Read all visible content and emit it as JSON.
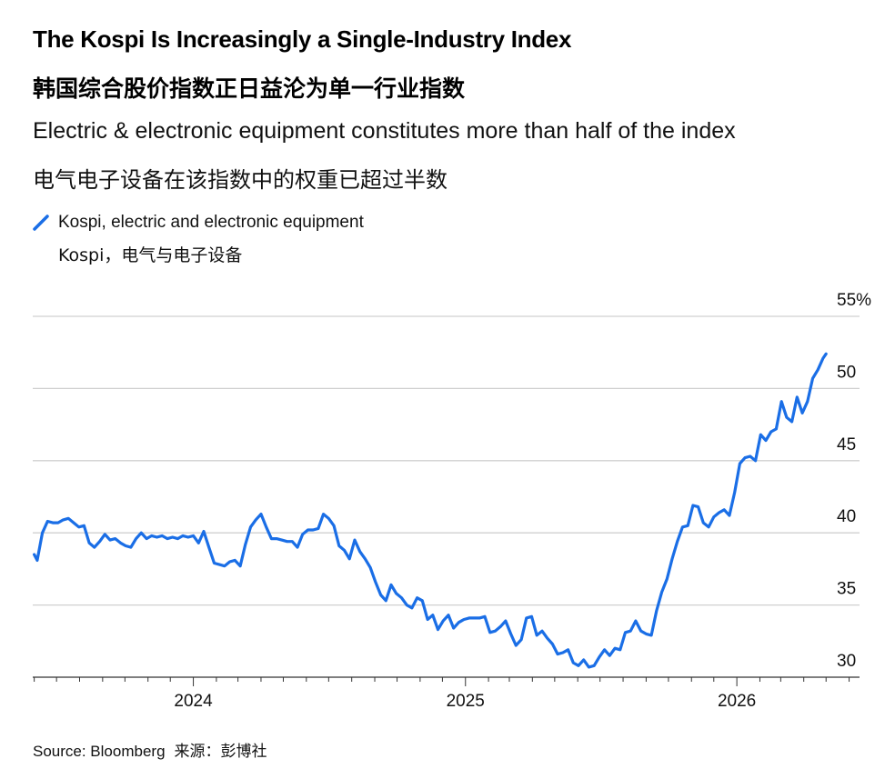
{
  "title": "The Kospi Is Increasingly a Single-Industry Index",
  "title_zh": "韩国综合股价指数正日益沦为单一行业指数",
  "subtitle": "Electric & electronic equipment constitutes more than half of the index",
  "subtitle_zh": "电气电子设备在该指数中的权重已超过半数",
  "legend": {
    "label": "Kospi, electric and electronic equipment",
    "label_zh": "Kospi，电气与电子设备"
  },
  "source": {
    "label": "Source: Bloomberg",
    "label_zh": "来源：彭博社"
  },
  "colors": {
    "line": "#1a6ee6",
    "grid": "#d0d0d0",
    "axis": "#333333"
  },
  "chart_data": {
    "type": "line",
    "series": [
      {
        "name": "Kospi, electric and electronic equipment",
        "points": [
          [
            "2023-06-01",
            38.5
          ],
          [
            "2023-06-05",
            38.1
          ],
          [
            "2023-06-12",
            40.0
          ],
          [
            "2023-06-19",
            40.8
          ],
          [
            "2023-06-26",
            40.7
          ],
          [
            "2023-07-03",
            40.7
          ],
          [
            "2023-07-10",
            40.9
          ],
          [
            "2023-07-17",
            41.0
          ],
          [
            "2023-07-24",
            40.7
          ],
          [
            "2023-07-31",
            40.4
          ],
          [
            "2023-08-07",
            40.5
          ],
          [
            "2023-08-14",
            39.3
          ],
          [
            "2023-08-21",
            39.0
          ],
          [
            "2023-08-28",
            39.4
          ],
          [
            "2023-09-04",
            39.9
          ],
          [
            "2023-09-11",
            39.5
          ],
          [
            "2023-09-18",
            39.6
          ],
          [
            "2023-09-25",
            39.3
          ],
          [
            "2023-10-02",
            39.1
          ],
          [
            "2023-10-09",
            39.0
          ],
          [
            "2023-10-16",
            39.6
          ],
          [
            "2023-10-23",
            40.0
          ],
          [
            "2023-10-30",
            39.6
          ],
          [
            "2023-11-06",
            39.8
          ],
          [
            "2023-11-13",
            39.7
          ],
          [
            "2023-11-20",
            39.8
          ],
          [
            "2023-11-27",
            39.6
          ],
          [
            "2023-12-04",
            39.7
          ],
          [
            "2023-12-11",
            39.6
          ],
          [
            "2023-12-18",
            39.8
          ],
          [
            "2023-12-25",
            39.7
          ],
          [
            "2024-01-01",
            39.8
          ],
          [
            "2024-01-08",
            39.3
          ],
          [
            "2024-01-15",
            40.1
          ],
          [
            "2024-01-22",
            39.0
          ],
          [
            "2024-01-29",
            37.9
          ],
          [
            "2024-02-05",
            37.8
          ],
          [
            "2024-02-12",
            37.7
          ],
          [
            "2024-02-19",
            38.0
          ],
          [
            "2024-02-26",
            38.1
          ],
          [
            "2024-03-04",
            37.7
          ],
          [
            "2024-03-11",
            39.2
          ],
          [
            "2024-03-18",
            40.4
          ],
          [
            "2024-03-25",
            40.9
          ],
          [
            "2024-04-01",
            41.3
          ],
          [
            "2024-04-08",
            40.4
          ],
          [
            "2024-04-15",
            39.6
          ],
          [
            "2024-04-22",
            39.6
          ],
          [
            "2024-04-29",
            39.5
          ],
          [
            "2024-05-06",
            39.4
          ],
          [
            "2024-05-13",
            39.4
          ],
          [
            "2024-05-20",
            39.0
          ],
          [
            "2024-05-27",
            39.9
          ],
          [
            "2024-06-03",
            40.2
          ],
          [
            "2024-06-10",
            40.2
          ],
          [
            "2024-06-17",
            40.3
          ],
          [
            "2024-06-24",
            41.3
          ],
          [
            "2024-07-01",
            41.0
          ],
          [
            "2024-07-08",
            40.5
          ],
          [
            "2024-07-15",
            39.1
          ],
          [
            "2024-07-22",
            38.8
          ],
          [
            "2024-07-29",
            38.2
          ],
          [
            "2024-08-05",
            39.5
          ],
          [
            "2024-08-12",
            38.7
          ],
          [
            "2024-08-19",
            38.2
          ],
          [
            "2024-08-26",
            37.6
          ],
          [
            "2024-09-02",
            36.6
          ],
          [
            "2024-09-09",
            35.7
          ],
          [
            "2024-09-16",
            35.3
          ],
          [
            "2024-09-23",
            36.4
          ],
          [
            "2024-09-30",
            35.8
          ],
          [
            "2024-10-07",
            35.5
          ],
          [
            "2024-10-14",
            35.0
          ],
          [
            "2024-10-21",
            34.8
          ],
          [
            "2024-10-28",
            35.5
          ],
          [
            "2024-11-04",
            35.3
          ],
          [
            "2024-11-11",
            34.0
          ],
          [
            "2024-11-18",
            34.3
          ],
          [
            "2024-11-25",
            33.3
          ],
          [
            "2024-12-02",
            33.9
          ],
          [
            "2024-12-09",
            34.3
          ],
          [
            "2024-12-16",
            33.4
          ],
          [
            "2024-12-23",
            33.8
          ],
          [
            "2024-12-30",
            34.0
          ],
          [
            "2025-01-06",
            34.1
          ],
          [
            "2025-01-13",
            34.1
          ],
          [
            "2025-01-20",
            34.1
          ],
          [
            "2025-01-27",
            34.2
          ],
          [
            "2025-02-03",
            33.1
          ],
          [
            "2025-02-10",
            33.2
          ],
          [
            "2025-02-17",
            33.5
          ],
          [
            "2025-02-24",
            33.9
          ],
          [
            "2025-03-03",
            33.0
          ],
          [
            "2025-03-10",
            32.2
          ],
          [
            "2025-03-17",
            32.6
          ],
          [
            "2025-03-24",
            34.1
          ],
          [
            "2025-03-31",
            34.2
          ],
          [
            "2025-04-07",
            32.9
          ],
          [
            "2025-04-14",
            33.2
          ],
          [
            "2025-04-21",
            32.7
          ],
          [
            "2025-04-28",
            32.3
          ],
          [
            "2025-05-05",
            31.6
          ],
          [
            "2025-05-12",
            31.7
          ],
          [
            "2025-05-19",
            31.9
          ],
          [
            "2025-05-26",
            31.0
          ],
          [
            "2025-06-02",
            30.8
          ],
          [
            "2025-06-09",
            31.2
          ],
          [
            "2025-06-16",
            30.7
          ],
          [
            "2025-06-23",
            30.8
          ],
          [
            "2025-06-30",
            31.4
          ],
          [
            "2025-07-07",
            31.9
          ],
          [
            "2025-07-14",
            31.5
          ],
          [
            "2025-07-21",
            32.0
          ],
          [
            "2025-07-28",
            31.9
          ],
          [
            "2025-08-04",
            33.1
          ],
          [
            "2025-08-11",
            33.2
          ],
          [
            "2025-08-18",
            33.9
          ],
          [
            "2025-08-25",
            33.2
          ],
          [
            "2025-09-01",
            33.0
          ],
          [
            "2025-09-08",
            32.9
          ],
          [
            "2025-09-15",
            34.6
          ],
          [
            "2025-09-22",
            35.9
          ],
          [
            "2025-09-29",
            36.8
          ],
          [
            "2025-10-06",
            38.2
          ],
          [
            "2025-10-13",
            39.4
          ],
          [
            "2025-10-20",
            40.4
          ],
          [
            "2025-10-27",
            40.5
          ],
          [
            "2025-11-03",
            41.9
          ],
          [
            "2025-11-10",
            41.8
          ],
          [
            "2025-11-17",
            40.7
          ],
          [
            "2025-11-24",
            40.4
          ],
          [
            "2025-12-01",
            41.1
          ],
          [
            "2025-12-08",
            41.4
          ],
          [
            "2025-12-15",
            41.6
          ],
          [
            "2025-12-22",
            41.2
          ],
          [
            "2025-12-29",
            42.8
          ],
          [
            "2026-01-05",
            44.8
          ],
          [
            "2026-01-12",
            45.2
          ],
          [
            "2026-01-19",
            45.3
          ],
          [
            "2026-01-26",
            45.0
          ],
          [
            "2026-02-02",
            46.8
          ],
          [
            "2026-02-09",
            46.4
          ],
          [
            "2026-02-16",
            47.0
          ],
          [
            "2026-02-23",
            47.2
          ],
          [
            "2026-03-02",
            49.1
          ],
          [
            "2026-03-09",
            48.0
          ],
          [
            "2026-03-16",
            47.7
          ],
          [
            "2026-03-23",
            49.4
          ],
          [
            "2026-03-30",
            48.3
          ],
          [
            "2026-04-06",
            49.1
          ],
          [
            "2026-04-13",
            50.7
          ],
          [
            "2026-04-20",
            51.3
          ],
          [
            "2026-04-27",
            52.1
          ],
          [
            "2026-05-01",
            52.4
          ]
        ]
      }
    ],
    "x_ticks": [
      "2024",
      "2025",
      "2026"
    ],
    "y_ticks": [
      30,
      35,
      40,
      45,
      50,
      55
    ],
    "y_tick_labels": [
      "30",
      "35",
      "40",
      "45",
      "50",
      "55%"
    ],
    "ylim": [
      30,
      55
    ],
    "xlim": [
      "2023-05-30",
      "2026-06-15"
    ],
    "grid": true,
    "legend_position": "top-left"
  }
}
